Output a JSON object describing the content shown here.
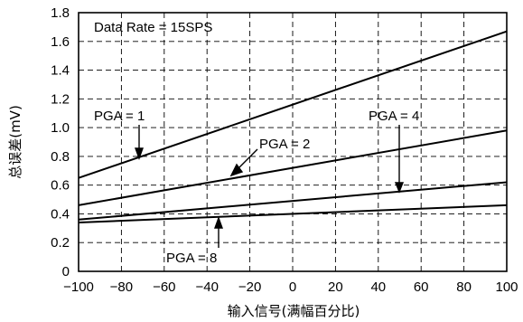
{
  "chart_data": {
    "type": "line",
    "annotation_top": "Data Rate = 15SPS",
    "xlabel": "输入信号(满幅百分比)",
    "ylabel": "总误差(mV)",
    "xlim": [
      -100,
      100
    ],
    "ylim": [
      0,
      1.8
    ],
    "xticks": [
      "−100",
      "−80",
      "−60",
      "−40",
      "−20",
      "0",
      "20",
      "40",
      "60",
      "80",
      "100"
    ],
    "yticks": [
      "0",
      "0.2",
      "0.4",
      "0.6",
      "0.8",
      "1.0",
      "1.2",
      "1.4",
      "1.6",
      "1.8"
    ],
    "grid": true,
    "series": [
      {
        "name": "PGA = 1",
        "x": [
          -100,
          100
        ],
        "y": [
          0.65,
          1.67
        ]
      },
      {
        "name": "PGA = 2",
        "x": [
          -100,
          100
        ],
        "y": [
          0.46,
          0.98
        ]
      },
      {
        "name": "PGA = 4",
        "x": [
          -100,
          100
        ],
        "y": [
          0.36,
          0.62
        ]
      },
      {
        "name": "PGA = 8",
        "x": [
          -100,
          100
        ],
        "y": [
          0.34,
          0.46
        ]
      }
    ],
    "labels": {
      "pga1": "PGA = 1",
      "pga2": "PGA = 2",
      "pga4": "PGA = 4",
      "pga8": "PGA = 8"
    }
  }
}
